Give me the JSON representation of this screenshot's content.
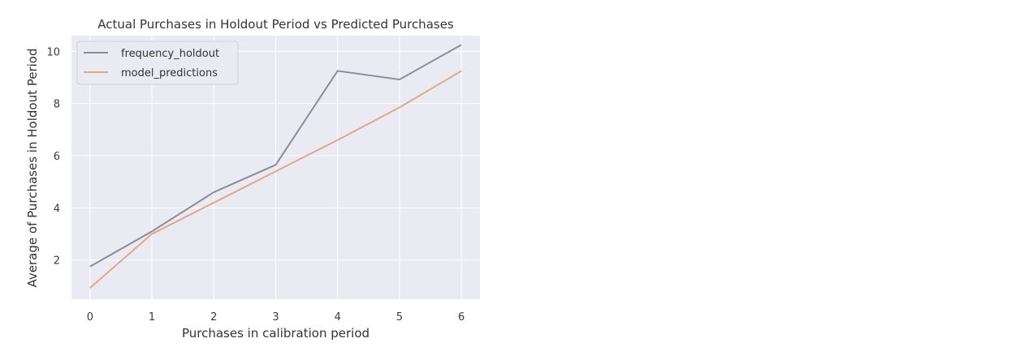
{
  "chart_data": {
    "type": "line",
    "title": "Actual Purchases in Holdout Period vs Predicted Purchases",
    "xlabel": "Purchases in calibration period",
    "ylabel": "Average of Purchases in Holdout Period",
    "x": [
      0,
      1,
      2,
      3,
      4,
      5,
      6
    ],
    "xticks": [
      "0",
      "1",
      "2",
      "3",
      "4",
      "5",
      "6"
    ],
    "yticks": [
      "2",
      "4",
      "6",
      "8",
      "10"
    ],
    "xlim": [
      -0.3,
      6.3
    ],
    "ylim": [
      0.5,
      10.6
    ],
    "grid": true,
    "legend_position": "top-left",
    "series": [
      {
        "name": "frequency_holdout",
        "color": "#8c8c99",
        "values": [
          1.75,
          3.1,
          4.6,
          5.65,
          9.25,
          8.92,
          10.25
        ]
      },
      {
        "name": "model_predictions",
        "color": "#e0a888",
        "values": [
          0.93,
          3.0,
          4.2,
          5.4,
          6.6,
          7.85,
          9.25
        ]
      }
    ]
  }
}
